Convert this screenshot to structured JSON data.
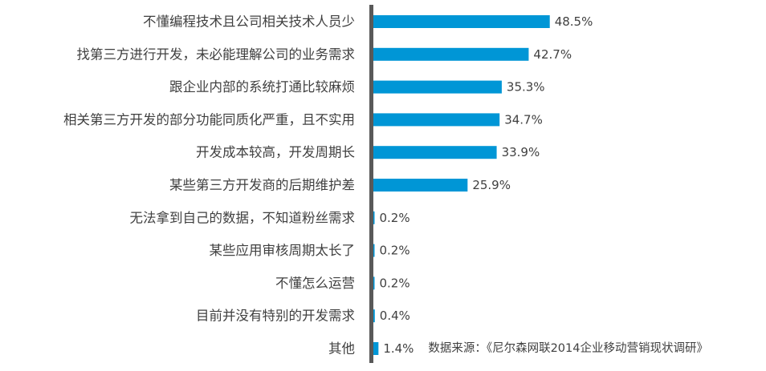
{
  "chart_data": {
    "type": "bar",
    "orientation": "horizontal",
    "categories": [
      "不懂编程技术且公司相关技术人员少",
      "找第三方进行开发，未必能理解公司的业务需求",
      "跟企业内部的系统打通比较麻烦",
      "相关第三方开发的部分功能同质化严重，且不实用",
      "开发成本较高，开发周期长",
      "某些第三方开发商的后期维护差",
      "无法拿到自己的数据，不知道粉丝需求",
      "某些应用审核周期太长了",
      "不懂怎么运营",
      "目前并没有特别的开发需求",
      "其他"
    ],
    "values": [
      48.5,
      42.7,
      35.3,
      34.7,
      33.9,
      25.9,
      0.2,
      0.2,
      0.2,
      0.4,
      1.4
    ],
    "value_labels": [
      "48.5%",
      "42.7%",
      "35.3%",
      "34.7%",
      "33.9%",
      "25.9%",
      "0.2%",
      "0.2%",
      "0.2%",
      "0.4%",
      "1.4%"
    ],
    "unit": "%",
    "title": "",
    "xlabel": "",
    "ylabel": "",
    "annotation": "数据来源：《尼尔森网联2014企业移动营销现状调研》",
    "bar_color": "#0096d6",
    "axis_color": "#595959",
    "text_color": "#404040",
    "grid": false,
    "legend": "none"
  }
}
